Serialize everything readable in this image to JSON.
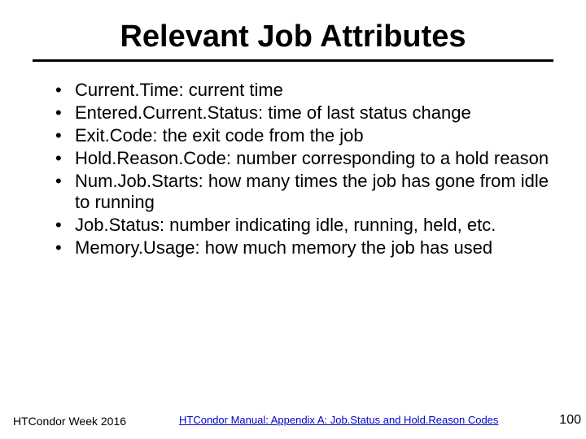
{
  "title": "Relevant Job Attributes",
  "bullets": [
    "Current.Time: current time",
    "Entered.Current.Status: time of last status change",
    "Exit.Code: the exit code from the job",
    "Hold.Reason.Code: number corresponding to a hold reason",
    "Num.Job.Starts: how many times the job has gone from idle to running",
    "Job.Status: number indicating idle, running, held, etc.",
    "Memory.Usage: how much memory the job has used"
  ],
  "footer": {
    "left": "HTCondor Week 2016",
    "link": "HTCondor Manual: Appendix A: Job.Status and Hold.Reason Codes",
    "page": "100"
  },
  "colors": {
    "background": "#ffffff",
    "text": "#000000",
    "link": "#0000cc"
  }
}
